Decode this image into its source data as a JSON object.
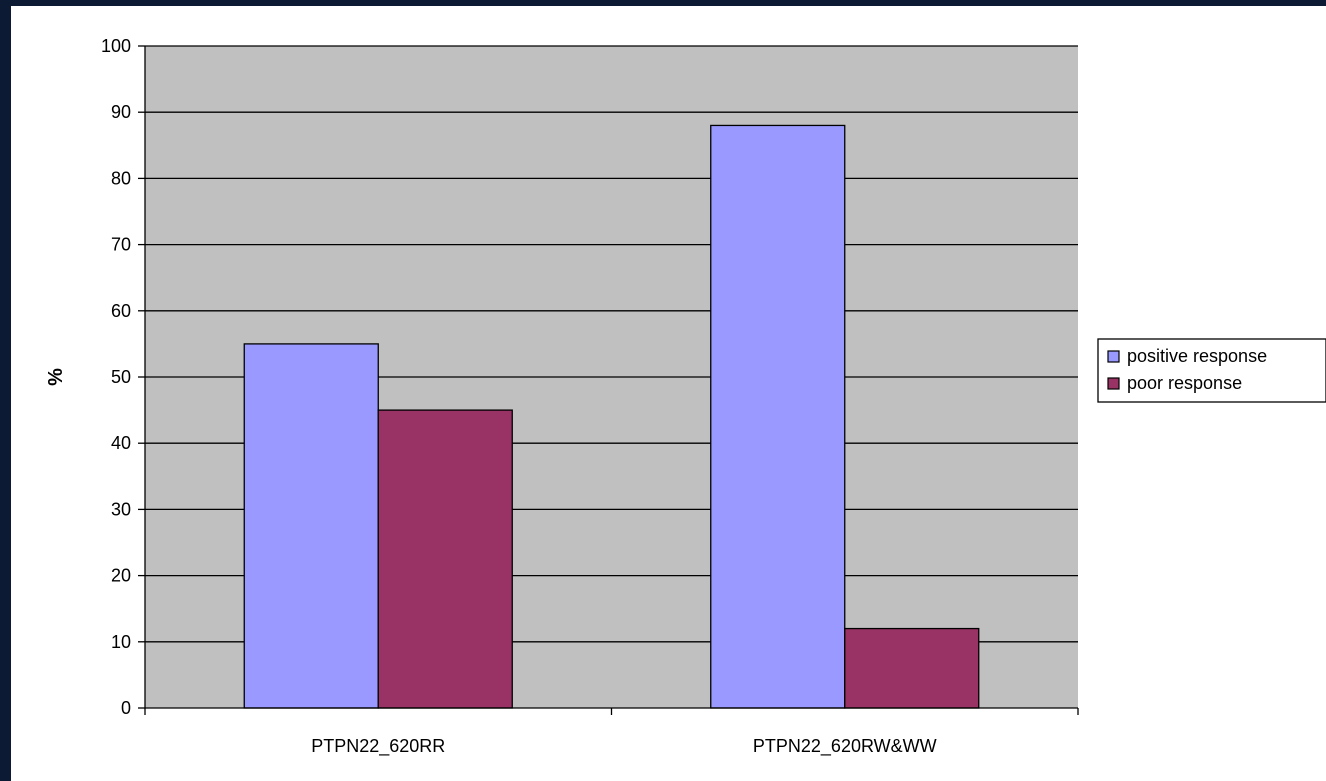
{
  "chart_data": {
    "type": "bar",
    "title": "",
    "xlabel": "",
    "ylabel": "%",
    "ylim": [
      0,
      100
    ],
    "yticks": [
      0,
      10,
      20,
      30,
      40,
      50,
      60,
      70,
      80,
      90,
      100
    ],
    "grid": true,
    "legend_position": "right",
    "categories": [
      "PTPN22_620RR",
      "PTPN22_620RW&WW"
    ],
    "series": [
      {
        "name": "positive response",
        "values": [
          55,
          88
        ],
        "color": "#9999ff"
      },
      {
        "name": "poor response",
        "values": [
          45,
          12
        ],
        "color": "#993366"
      }
    ],
    "plot_background": "#c0c0c0"
  }
}
